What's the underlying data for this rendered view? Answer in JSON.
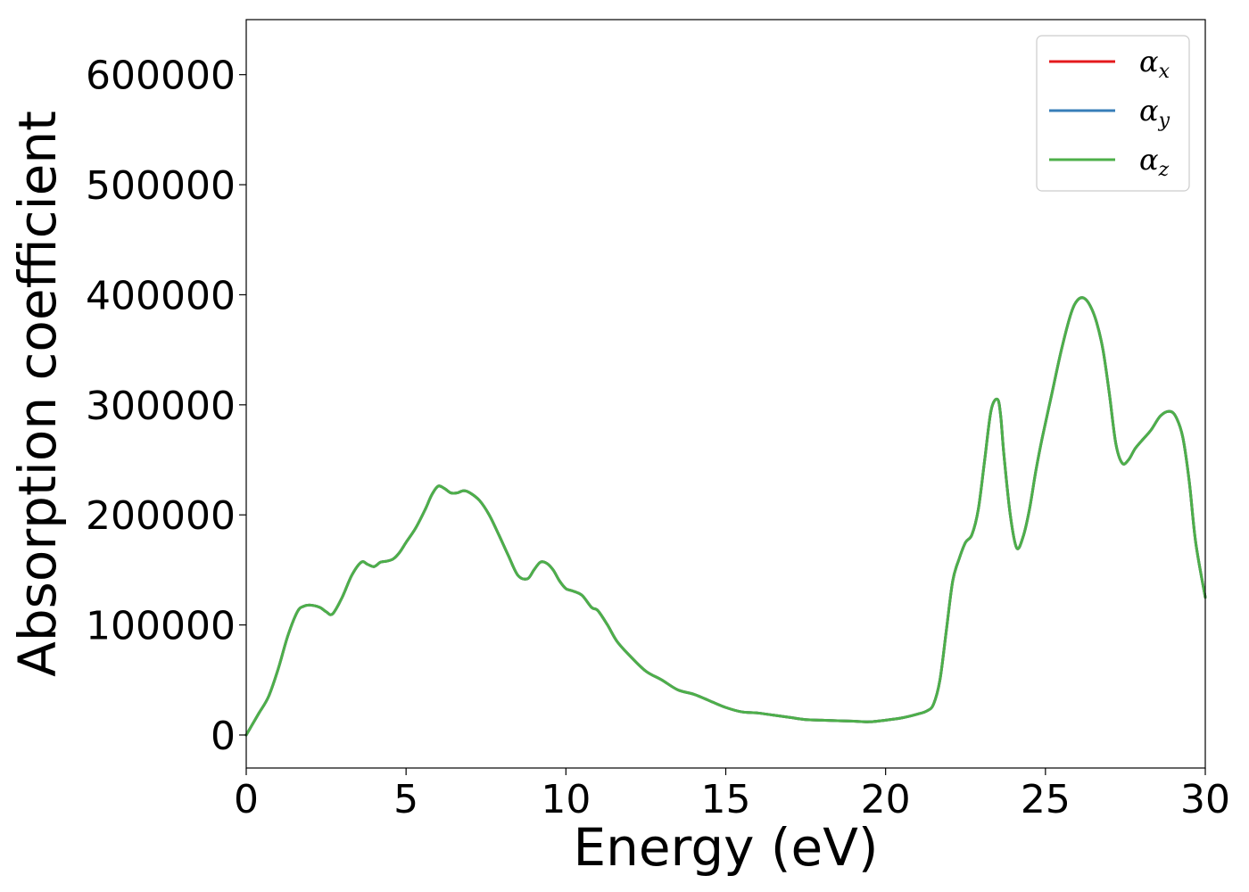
{
  "chart_data": {
    "type": "line",
    "xlabel": "Energy (eV)",
    "ylabel": "Absorption coefficient",
    "xlim": [
      0,
      30
    ],
    "ylim": [
      -30000,
      650000
    ],
    "x_ticks": [
      0,
      5,
      10,
      15,
      20,
      25,
      30
    ],
    "x_tick_labels": [
      "0",
      "5",
      "10",
      "15",
      "20",
      "25",
      "30"
    ],
    "y_ticks": [
      0,
      100000,
      200000,
      300000,
      400000,
      500000,
      600000
    ],
    "y_tick_labels": [
      "0",
      "100000",
      "200000",
      "300000",
      "400000",
      "500000",
      "600000"
    ],
    "grid": false,
    "legend_position": "top-right",
    "x": [
      0,
      0.2,
      0.4,
      0.7,
      1.0,
      1.3,
      1.6,
      1.8,
      2.0,
      2.3,
      2.5,
      2.7,
      3.0,
      3.3,
      3.6,
      3.8,
      4.0,
      4.2,
      4.4,
      4.6,
      4.8,
      5.0,
      5.3,
      5.6,
      5.8,
      6.0,
      6.2,
      6.4,
      6.6,
      6.8,
      7.0,
      7.3,
      7.6,
      7.9,
      8.2,
      8.5,
      8.8,
      9.0,
      9.2,
      9.4,
      9.6,
      9.8,
      10.0,
      10.2,
      10.5,
      10.8,
      11.0,
      11.3,
      11.6,
      12.0,
      12.5,
      13.0,
      13.5,
      14.0,
      14.5,
      15.0,
      15.5,
      16.0,
      16.5,
      17.0,
      17.5,
      18.0,
      18.5,
      19.0,
      19.5,
      20.0,
      20.5,
      21.0,
      21.3,
      21.5,
      21.7,
      21.9,
      22.1,
      22.3,
      22.5,
      22.7,
      22.9,
      23.1,
      23.3,
      23.5,
      23.6,
      23.7,
      23.9,
      24.1,
      24.3,
      24.5,
      24.7,
      24.9,
      25.2,
      25.5,
      25.8,
      26.0,
      26.2,
      26.4,
      26.6,
      26.8,
      27.0,
      27.2,
      27.4,
      27.6,
      27.8,
      28.0,
      28.3,
      28.6,
      28.9,
      29.1,
      29.3,
      29.5,
      29.7,
      30.0
    ],
    "series": [
      {
        "name": "α_x",
        "color": "#e41a1c",
        "values": [
          0,
          10000,
          20000,
          35000,
          60000,
          90000,
          112000,
          117000,
          118000,
          116000,
          112000,
          110000,
          125000,
          145000,
          157000,
          155000,
          153000,
          157000,
          158000,
          160000,
          166000,
          175000,
          188000,
          205000,
          218000,
          226000,
          224000,
          220000,
          220000,
          222000,
          220000,
          213000,
          200000,
          182000,
          163000,
          145000,
          142000,
          150000,
          157000,
          156000,
          150000,
          140000,
          133000,
          131000,
          127000,
          116000,
          113000,
          100000,
          85000,
          72000,
          58000,
          50000,
          41000,
          37000,
          31000,
          25000,
          21000,
          20000,
          18000,
          16000,
          14000,
          13500,
          13000,
          12500,
          12000,
          13500,
          15500,
          19000,
          22000,
          28000,
          50000,
          95000,
          140000,
          160000,
          175000,
          182000,
          205000,
          250000,
          295000,
          305000,
          290000,
          255000,
          200000,
          170000,
          180000,
          205000,
          240000,
          270000,
          310000,
          350000,
          383000,
          395000,
          397000,
          390000,
          375000,
          350000,
          310000,
          265000,
          247000,
          250000,
          260000,
          267000,
          277000,
          290000,
          294000,
          288000,
          270000,
          230000,
          175000,
          125000
        ]
      },
      {
        "name": "α_y",
        "color": "#377eb8",
        "values": [
          0,
          10000,
          20000,
          35000,
          60000,
          90000,
          112000,
          117000,
          118000,
          116000,
          112000,
          110000,
          125000,
          145000,
          157000,
          155000,
          153000,
          157000,
          158000,
          160000,
          166000,
          175000,
          188000,
          205000,
          218000,
          226000,
          224000,
          220000,
          220000,
          222000,
          220000,
          213000,
          200000,
          182000,
          163000,
          145000,
          142000,
          150000,
          157000,
          156000,
          150000,
          140000,
          133000,
          131000,
          127000,
          116000,
          113000,
          100000,
          85000,
          72000,
          58000,
          50000,
          41000,
          37000,
          31000,
          25000,
          21000,
          20000,
          18000,
          16000,
          14000,
          13500,
          13000,
          12500,
          12000,
          13500,
          15500,
          19000,
          22000,
          28000,
          50000,
          95000,
          140000,
          160000,
          175000,
          182000,
          205000,
          250000,
          295000,
          305000,
          290000,
          255000,
          200000,
          170000,
          180000,
          205000,
          240000,
          270000,
          310000,
          350000,
          383000,
          395000,
          397000,
          390000,
          375000,
          350000,
          310000,
          265000,
          247000,
          250000,
          260000,
          267000,
          277000,
          290000,
          294000,
          288000,
          270000,
          230000,
          175000,
          125000
        ]
      },
      {
        "name": "α_z",
        "color": "#4daf4a",
        "values": [
          0,
          10000,
          20000,
          35000,
          60000,
          90000,
          112000,
          117000,
          118000,
          116000,
          112000,
          110000,
          125000,
          145000,
          157000,
          155000,
          153000,
          157000,
          158000,
          160000,
          166000,
          175000,
          188000,
          205000,
          218000,
          226000,
          224000,
          220000,
          220000,
          222000,
          220000,
          213000,
          200000,
          182000,
          163000,
          145000,
          142000,
          150000,
          157000,
          156000,
          150000,
          140000,
          133000,
          131000,
          127000,
          116000,
          113000,
          100000,
          85000,
          72000,
          58000,
          50000,
          41000,
          37000,
          31000,
          25000,
          21000,
          20000,
          18000,
          16000,
          14000,
          13500,
          13000,
          12500,
          12000,
          13500,
          15500,
          19000,
          22000,
          28000,
          50000,
          95000,
          140000,
          160000,
          175000,
          182000,
          205000,
          250000,
          295000,
          305000,
          290000,
          255000,
          200000,
          170000,
          180000,
          205000,
          240000,
          270000,
          310000,
          350000,
          383000,
          395000,
          397000,
          390000,
          375000,
          350000,
          310000,
          265000,
          247000,
          250000,
          260000,
          267000,
          277000,
          290000,
          294000,
          288000,
          270000,
          230000,
          175000,
          125000
        ]
      }
    ],
    "legend": [
      {
        "symbol": "α",
        "sub": "x",
        "color": "#e41a1c"
      },
      {
        "symbol": "α",
        "sub": "y",
        "color": "#377eb8"
      },
      {
        "symbol": "α",
        "sub": "z",
        "color": "#4daf4a"
      }
    ]
  }
}
